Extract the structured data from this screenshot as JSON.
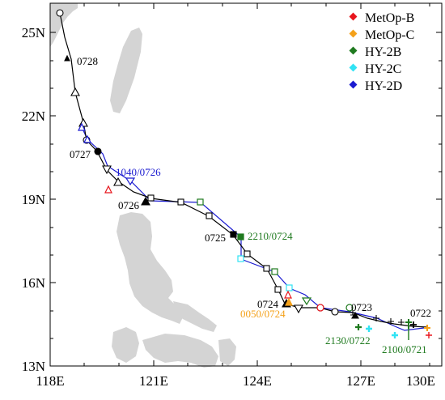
{
  "map": {
    "axes": {
      "x_ticks": [
        "118E",
        "121E",
        "124E",
        "127E",
        "130E"
      ],
      "y_ticks": [
        "13N",
        "16N",
        "19N",
        "22N",
        "25N"
      ]
    },
    "legend": [
      {
        "label": "MetOp-B",
        "color": "#e8161d"
      },
      {
        "label": "MetOp-C",
        "color": "#f4a11a"
      },
      {
        "label": "HY-2B",
        "color": "#1f7a1f"
      },
      {
        "label": "HY-2C",
        "color": "#31e3f4"
      },
      {
        "label": "HY-2D",
        "color": "#1a1ad0"
      }
    ],
    "colors": {
      "best_track": "#000000",
      "satellite_track": "#1a1ad0",
      "land": "#d4d4d4",
      "metop_b": "#e8161d",
      "metop_c": "#f4a11a",
      "hy2b": "#1f7a1f",
      "hy2c": "#31e3f4",
      "hy2d": "#1a1ad0"
    },
    "annotations": {
      "date_0728": "0728",
      "date_0727": "0727",
      "date_0726": "0726",
      "date_0725": "0725",
      "date_0724": "0724",
      "date_0723": "0723",
      "date_0722": "0722",
      "obs_hy2d": "1040/0726",
      "obs_hy2b_0724": "2210/0724",
      "obs_metopc": "0050/0724",
      "obs_hy2b_0722": "2130/0722",
      "obs_hy2b_0721": "2100/0721"
    }
  }
}
